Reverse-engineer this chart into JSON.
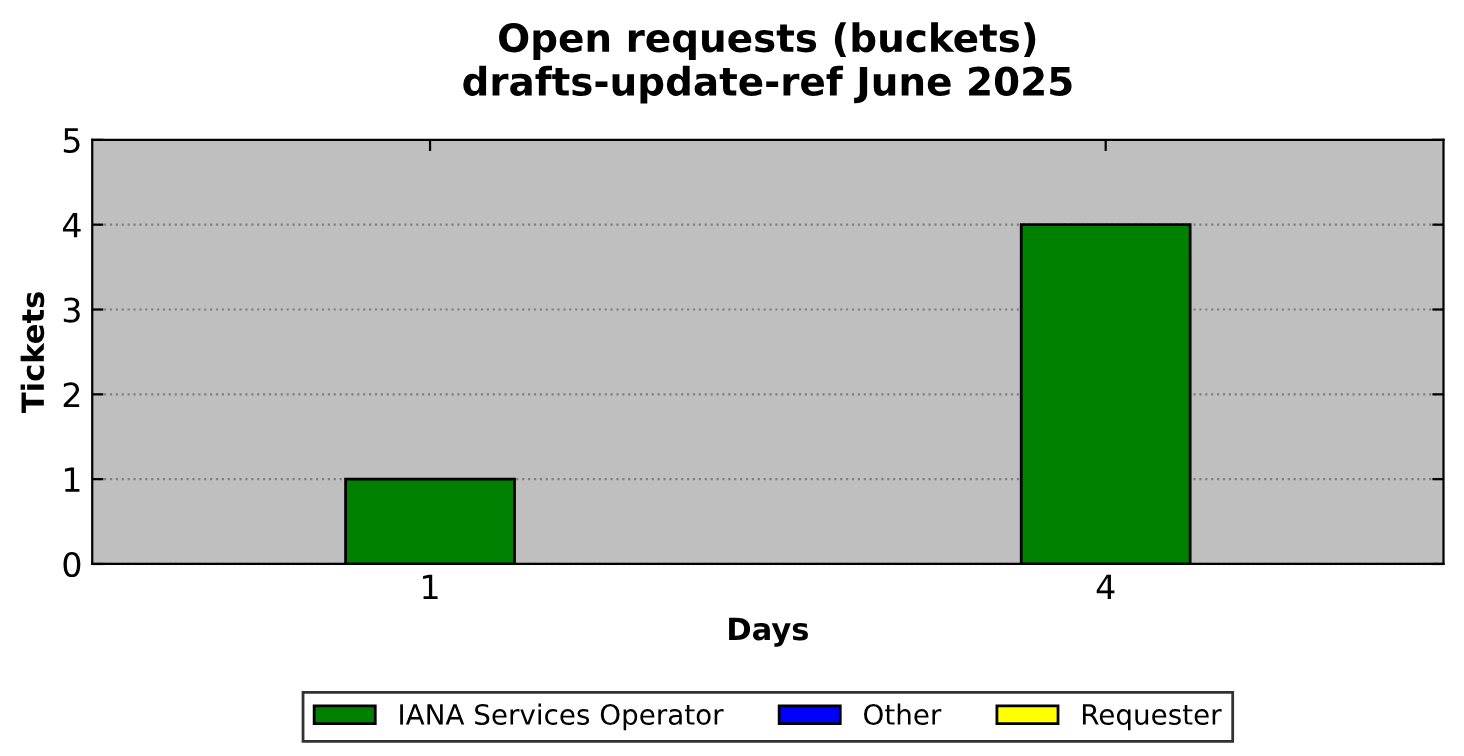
{
  "chart_data": {
    "type": "bar",
    "title": "Open requests (buckets)\ndrafts-update-ref June 2025",
    "xlabel": "Days",
    "ylabel": "Tickets",
    "categories": [
      "1",
      "4"
    ],
    "series": [
      {
        "name": "IANA Services Operator",
        "color": "#008000",
        "values": [
          1,
          4
        ]
      },
      {
        "name": "Other",
        "color": "#0000ff",
        "values": [
          0,
          0
        ]
      },
      {
        "name": "Requester",
        "color": "#ffff00",
        "values": [
          0,
          0
        ]
      }
    ],
    "stacked": true,
    "ylim": [
      0,
      5
    ],
    "yticks": [
      0,
      1,
      2,
      3,
      4,
      5
    ],
    "grid": "y",
    "legend": "bottom"
  }
}
